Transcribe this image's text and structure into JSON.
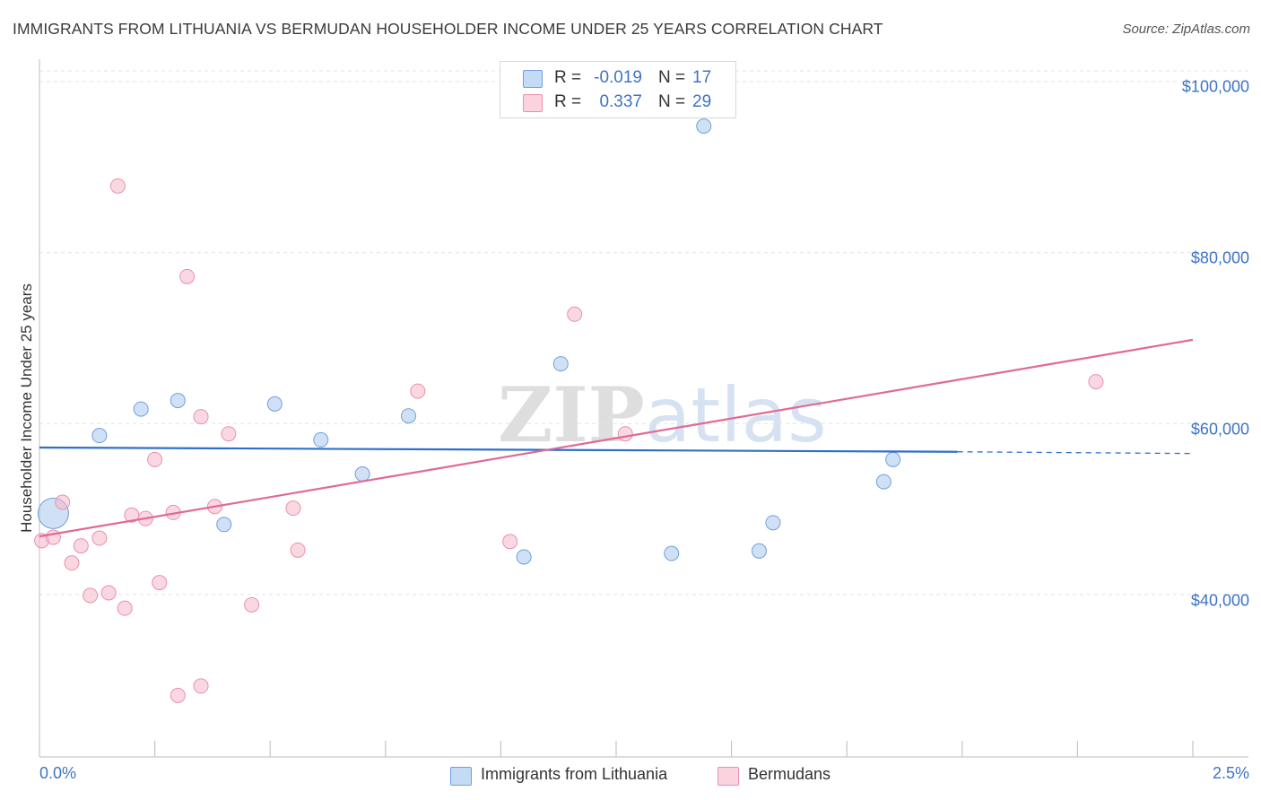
{
  "header": {
    "title": "IMMIGRANTS FROM LITHUANIA VS BERMUDAN HOUSEHOLDER INCOME UNDER 25 YEARS CORRELATION CHART",
    "source": "Source: ZipAtlas.com"
  },
  "watermark": "ZIPatlas",
  "stats": [
    {
      "r_label": "R =",
      "r_value": "-0.019",
      "n_label": "N =",
      "n_value": "17",
      "color": "#a9c8ef"
    },
    {
      "r_label": "R =",
      "r_value": "0.337",
      "n_label": "N =",
      "n_value": "29",
      "color": "#f5b8cb"
    }
  ],
  "legend": [
    {
      "label": "Immigrants from Lithuania",
      "color": "#a9c8ef"
    },
    {
      "label": "Bermudans",
      "color": "#f5b8cb"
    }
  ],
  "chart_data": {
    "type": "scatter",
    "title": "IMMIGRANTS FROM LITHUANIA VS BERMUDAN HOUSEHOLDER INCOME UNDER 25 YEARS CORRELATION CHART",
    "xlabel": "",
    "ylabel": "Householder Income Under 25 years",
    "xlim": [
      0,
      2.5
    ],
    "ylim": [
      21000,
      102000
    ],
    "x_tick_labels": [
      "0.0%",
      "2.5%"
    ],
    "y_ticks": [
      40000,
      60000,
      80000,
      100000
    ],
    "y_tick_labels": [
      "$40,000",
      "$60,000",
      "$80,000",
      "$100,000"
    ],
    "grid": true,
    "series": [
      {
        "name": "Immigrants from Lithuania",
        "color": "#a9c8ef",
        "stroke": "#6fa0dc",
        "line_color": "#2f6fcb",
        "trend": {
          "x": [
            0,
            1.99
          ],
          "y": [
            57200,
            56700
          ],
          "dashed_to": 2.5,
          "dashed_y": 56500
        },
        "points": [
          {
            "x": 0.03,
            "y": 49500,
            "big": true
          },
          {
            "x": 0.13,
            "y": 58600
          },
          {
            "x": 0.22,
            "y": 61700
          },
          {
            "x": 0.3,
            "y": 62700
          },
          {
            "x": 0.4,
            "y": 48200
          },
          {
            "x": 0.51,
            "y": 62300
          },
          {
            "x": 0.61,
            "y": 58100
          },
          {
            "x": 0.7,
            "y": 54100
          },
          {
            "x": 0.8,
            "y": 60900
          },
          {
            "x": 1.05,
            "y": 44400
          },
          {
            "x": 1.13,
            "y": 67000
          },
          {
            "x": 1.37,
            "y": 44800
          },
          {
            "x": 1.44,
            "y": 94800
          },
          {
            "x": 1.56,
            "y": 45100
          },
          {
            "x": 1.59,
            "y": 48400
          },
          {
            "x": 1.83,
            "y": 53200
          },
          {
            "x": 1.85,
            "y": 55800
          }
        ]
      },
      {
        "name": "Bermudans",
        "color": "#f5b8cb",
        "stroke": "#ec8fab",
        "line_color": "#e06a95",
        "trend": {
          "x": [
            0,
            2.5
          ],
          "y": [
            46800,
            69800
          ]
        },
        "points": [
          {
            "x": 0.005,
            "y": 46300
          },
          {
            "x": 0.03,
            "y": 46700
          },
          {
            "x": 0.05,
            "y": 50800
          },
          {
            "x": 0.07,
            "y": 43700
          },
          {
            "x": 0.09,
            "y": 45700
          },
          {
            "x": 0.11,
            "y": 39900
          },
          {
            "x": 0.13,
            "y": 46600
          },
          {
            "x": 0.15,
            "y": 40200
          },
          {
            "x": 0.17,
            "y": 87800
          },
          {
            "x": 0.185,
            "y": 38400
          },
          {
            "x": 0.2,
            "y": 49300
          },
          {
            "x": 0.23,
            "y": 48900
          },
          {
            "x": 0.25,
            "y": 55800
          },
          {
            "x": 0.26,
            "y": 41400
          },
          {
            "x": 0.29,
            "y": 49600
          },
          {
            "x": 0.3,
            "y": 28200
          },
          {
            "x": 0.32,
            "y": 77200
          },
          {
            "x": 0.35,
            "y": 60800
          },
          {
            "x": 0.35,
            "y": 29300
          },
          {
            "x": 0.38,
            "y": 50300
          },
          {
            "x": 0.41,
            "y": 58800
          },
          {
            "x": 0.46,
            "y": 38800
          },
          {
            "x": 0.55,
            "y": 50100
          },
          {
            "x": 0.56,
            "y": 45200
          },
          {
            "x": 0.82,
            "y": 63800
          },
          {
            "x": 1.02,
            "y": 46200
          },
          {
            "x": 1.16,
            "y": 72800
          },
          {
            "x": 1.27,
            "y": 58800
          },
          {
            "x": 2.29,
            "y": 64900
          }
        ]
      }
    ]
  }
}
